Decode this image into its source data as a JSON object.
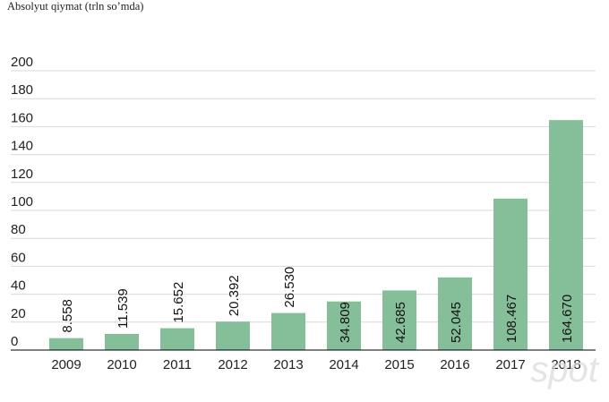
{
  "chart_data": {
    "type": "bar",
    "ylabel": "Absolyut qiymat (trln so’mda)",
    "categories": [
      "2009",
      "2010",
      "2011",
      "2012",
      "2013",
      "2014",
      "2015",
      "2016",
      "2017",
      "2018"
    ],
    "values": [
      8.558,
      11.539,
      15.652,
      20.392,
      26.53,
      34.809,
      42.685,
      52.045,
      108.467,
      164.67
    ],
    "data_labels": [
      "8.558",
      "11.539",
      "15.652",
      "20.392",
      "26.530",
      "34.809",
      "42.685",
      "52.045",
      "108.467",
      "164.670"
    ],
    "ylim": [
      0,
      200
    ],
    "yticks": [
      0,
      20,
      40,
      60,
      80,
      100,
      120,
      140,
      160,
      180,
      200
    ],
    "grid": true,
    "colors": {
      "bar": "#85bf99",
      "grid": "#d9d9d9",
      "text": "#222222",
      "axis": "#000000"
    }
  },
  "watermark": "spot"
}
